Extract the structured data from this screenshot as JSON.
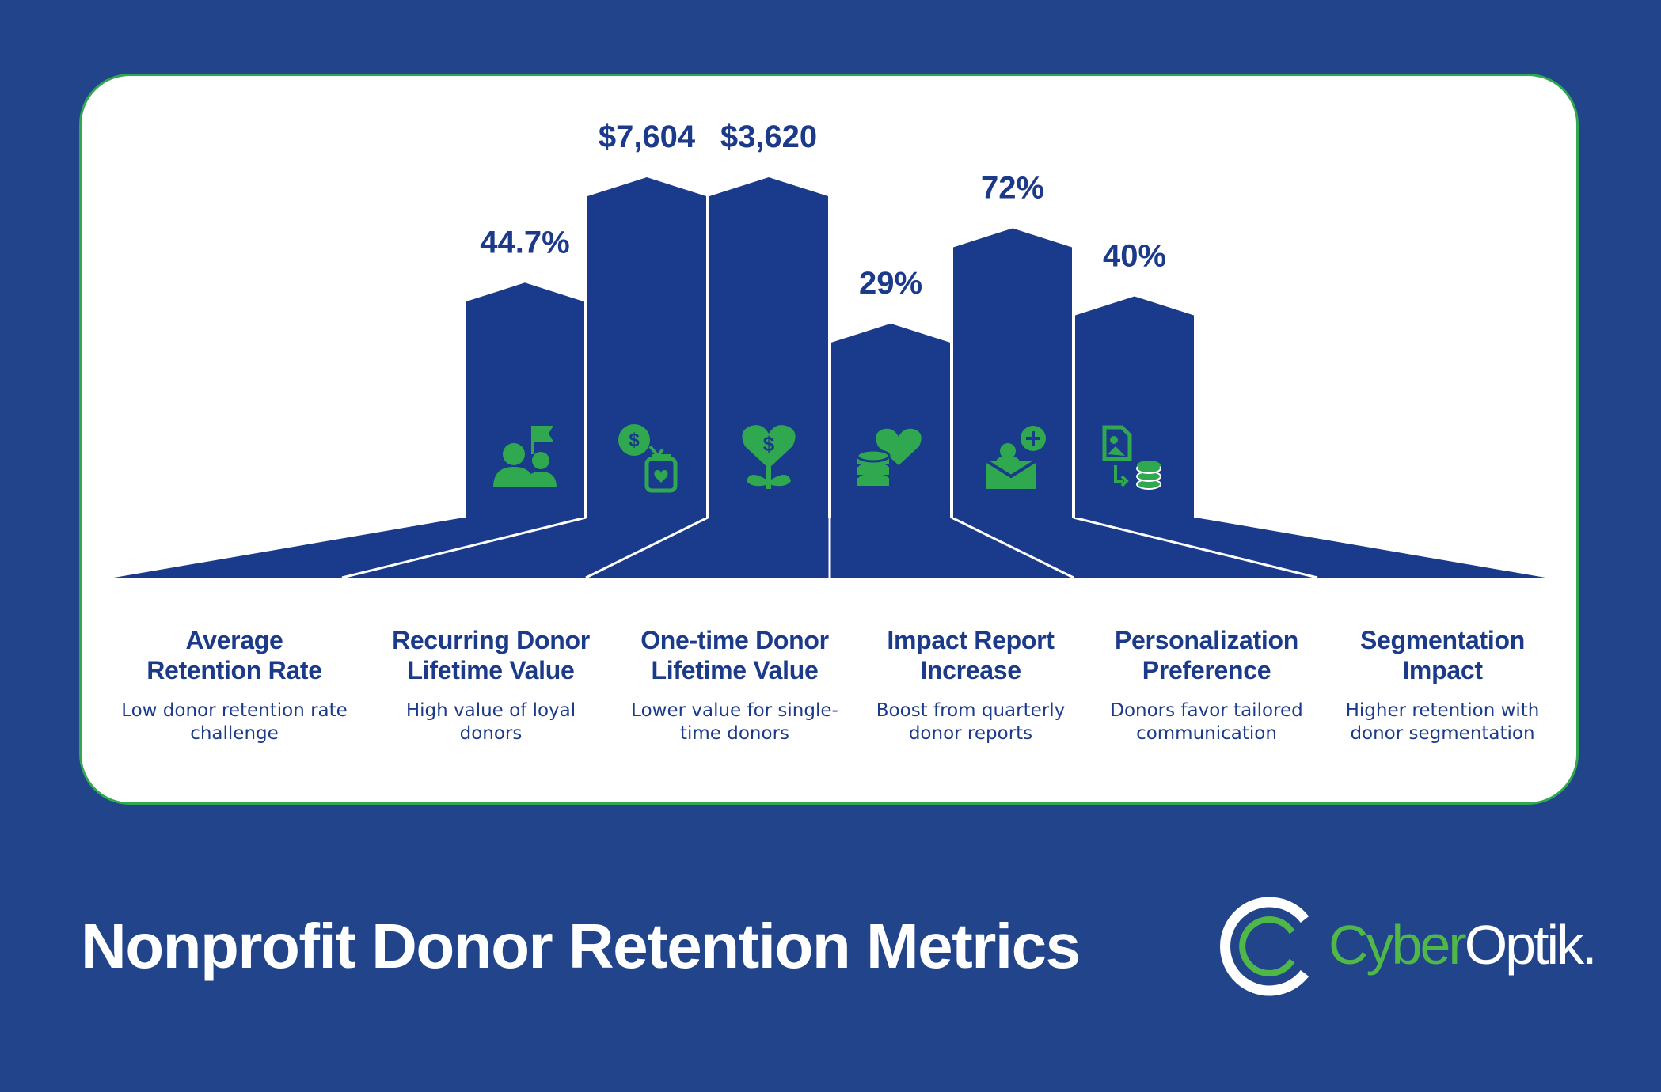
{
  "title": "Nonprofit Donor Retention Metrics",
  "brand": {
    "part1": "Cyber",
    "part2": "Optik."
  },
  "colors": {
    "background": "#21448b",
    "bar": "#1a3a8c",
    "icon": "#2fa84f",
    "text": "#1b3a8a",
    "border": "#2fa84f"
  },
  "chart_data": {
    "type": "bar",
    "categories": [
      "Average Retention Rate",
      "Recurring Donor Lifetime Value",
      "One-time Donor Lifetime Value",
      "Impact Report Increase",
      "Personalization Preference",
      "Segmentation Impact"
    ],
    "value_labels": [
      "44.7%",
      "$7,604",
      "$3,620",
      "29%",
      "72%",
      "40%"
    ],
    "relative_heights": [
      0.69,
      1.0,
      1.0,
      0.57,
      0.85,
      0.65
    ],
    "icons": [
      "people-flag-icon",
      "dollar-jar-icon",
      "heart-plant-icon",
      "coins-heart-icon",
      "donation-box-icon",
      "report-coins-icon"
    ]
  },
  "metrics": [
    {
      "title_line1": "Average",
      "title_line2": "Retention Rate",
      "desc_line1": "Low donor retention rate",
      "desc_line2": "challenge"
    },
    {
      "title_line1": "Recurring Donor",
      "title_line2": "Lifetime Value",
      "desc_line1": "High value of loyal",
      "desc_line2": "donors"
    },
    {
      "title_line1": "One-time Donor",
      "title_line2": "Lifetime Value",
      "desc_line1": "Lower value for single-",
      "desc_line2": "time donors"
    },
    {
      "title_line1": "Impact Report",
      "title_line2": "Increase",
      "desc_line1": "Boost from quarterly",
      "desc_line2": "donor reports"
    },
    {
      "title_line1": "Personalization",
      "title_line2": "Preference",
      "desc_line1": "Donors favor tailored",
      "desc_line2": "communication"
    },
    {
      "title_line1": "Segmentation",
      "title_line2": "Impact",
      "desc_line1": "Higher retention with",
      "desc_line2": "donor segmentation"
    }
  ]
}
